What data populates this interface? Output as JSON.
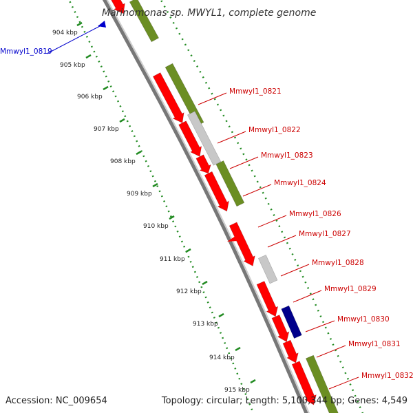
{
  "title": "Marinomonas sp. MWYL1, complete genome",
  "footer": {
    "accession": "Accession: NC_009654",
    "summary": "Topology: circular; Length: 5,100,344 bp; Genes: 4,549"
  },
  "colors": {
    "forward_gene": "#ff0000",
    "rna_gene": "#6b8e23",
    "pseudo_gene": "#c8c8c8",
    "selected_gene": "#00008b",
    "pointer": "#0000cc",
    "tick": "#228b22",
    "backbone": "#888888",
    "label": "#cc0000",
    "selected_label": "#0000cc"
  },
  "ticks": [
    {
      "label": "904 kbp"
    },
    {
      "label": "905 kbp"
    },
    {
      "label": "906 kbp"
    },
    {
      "label": "907 kbp"
    },
    {
      "label": "908 kbp"
    },
    {
      "label": "909 kbp"
    },
    {
      "label": "910 kbp"
    },
    {
      "label": "911 kbp"
    },
    {
      "label": "912 kbp"
    },
    {
      "label": "913 kbp"
    },
    {
      "label": "914 kbp"
    },
    {
      "label": "915 kbp"
    }
  ],
  "selected_gene": {
    "label": "Mmwyl1_0819"
  },
  "gene_labels": [
    {
      "label": "Mmwyl1_0821"
    },
    {
      "label": "Mmwyl1_0822"
    },
    {
      "label": "Mmwyl1_0823"
    },
    {
      "label": "Mmwyl1_0824"
    },
    {
      "label": "Mmwyl1_0826"
    },
    {
      "label": "Mmwyl1_0827"
    },
    {
      "label": "Mmwyl1_0828"
    },
    {
      "label": "Mmwyl1_0829"
    },
    {
      "label": "Mmwyl1_0830"
    },
    {
      "label": "Mmwyl1_0831"
    },
    {
      "label": "Mmwyl1_0832"
    }
  ],
  "features": [
    {
      "type": "gene"
    },
    {
      "type": "rna"
    },
    {
      "type": "rna"
    },
    {
      "type": "gene"
    },
    {
      "type": "gene"
    },
    {
      "type": "pseudo"
    },
    {
      "type": "gene"
    },
    {
      "type": "gene"
    },
    {
      "type": "rna"
    },
    {
      "type": "gene"
    },
    {
      "type": "pseudo"
    },
    {
      "type": "gene"
    },
    {
      "type": "gene"
    },
    {
      "type": "selected"
    },
    {
      "type": "gene"
    },
    {
      "type": "gene"
    },
    {
      "type": "rna"
    }
  ]
}
